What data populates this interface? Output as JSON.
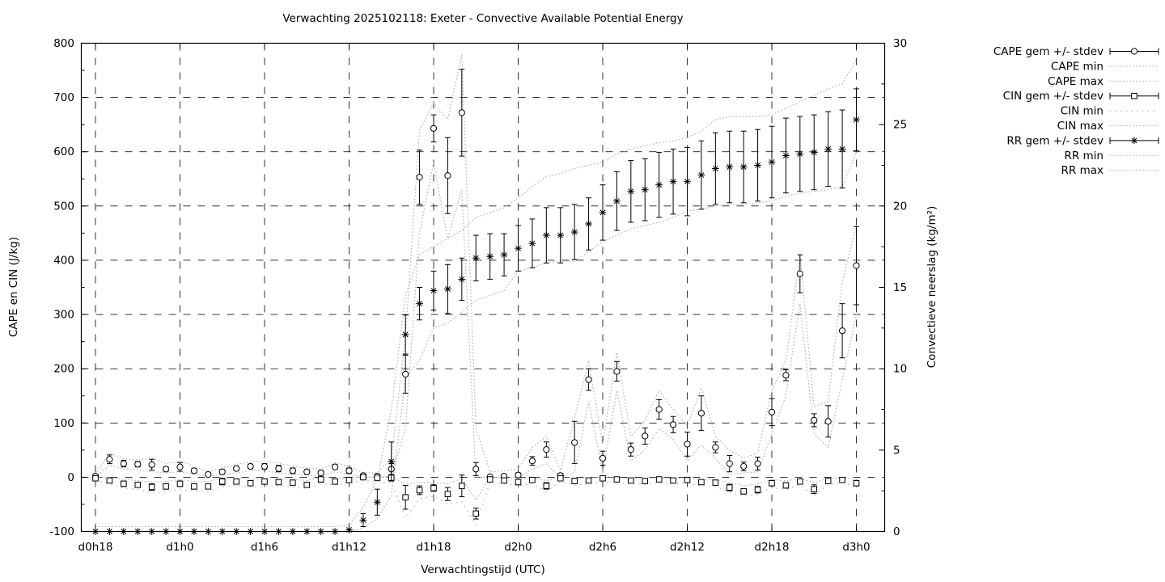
{
  "chart_data": {
    "type": "line",
    "title": "Verwachting 2025102118: Exeter - Convective Available Potential Energy",
    "xlabel": "Verwachtingstijd (UTC)",
    "ylabel_left": "CAPE en CIN (J/kg)",
    "ylabel_right": "Convectieve neerslag (kg/m²)",
    "grid": true,
    "legend_position": "outside-right-top",
    "ylim_left": [
      -100,
      800
    ],
    "yticks_left": [
      -100,
      0,
      100,
      200,
      300,
      400,
      500,
      600,
      700,
      800
    ],
    "ylim_right": [
      0,
      30
    ],
    "yticks_right": [
      0,
      5,
      10,
      15,
      20,
      25,
      30
    ],
    "n_points": 55,
    "x_tick_labels": [
      "d0h18",
      "d1h0",
      "d1h6",
      "d1h12",
      "d1h18",
      "d2h0",
      "d2h6",
      "d2h12",
      "d2h18",
      "d3h0"
    ],
    "x_tick_indices": [
      0,
      6,
      12,
      18,
      24,
      30,
      36,
      42,
      48,
      54
    ],
    "legend": [
      {
        "label": "CAPE gem +/- stdev",
        "style": "errorbar-circle"
      },
      {
        "label": "CAPE min",
        "style": "dotted"
      },
      {
        "label": "CAPE max",
        "style": "dotted"
      },
      {
        "label": "CIN gem +/- stdev",
        "style": "errorbar-square"
      },
      {
        "label": "CIN min",
        "style": "sparse-dotted"
      },
      {
        "label": "CIN max",
        "style": "dotted"
      },
      {
        "label": "RR gem +/- stdev",
        "style": "errorbar-asterisk"
      },
      {
        "label": "RR min",
        "style": "dotted"
      },
      {
        "label": "RR max",
        "style": "dotted"
      }
    ],
    "series": {
      "cape_gem": [
        2,
        33,
        25,
        24,
        23,
        15,
        19,
        12,
        5,
        10,
        16,
        20,
        20,
        16,
        12,
        10,
        8,
        19,
        12,
        3,
        2,
        15,
        190,
        553,
        643,
        556,
        672,
        15,
        1,
        2,
        4,
        30,
        51,
        3,
        64,
        180,
        35,
        195,
        51,
        76,
        125,
        97,
        61,
        118,
        55,
        25,
        20,
        25,
        120,
        188,
        375,
        105,
        103,
        270,
        390
      ],
      "cape_stdev": [
        3,
        8,
        6,
        5,
        10,
        4,
        8,
        4,
        3,
        4,
        4,
        4,
        5,
        6,
        5,
        4,
        4,
        4,
        5,
        3,
        3,
        10,
        35,
        50,
        25,
        70,
        80,
        12,
        2,
        3,
        4,
        8,
        14,
        4,
        39,
        20,
        13,
        18,
        12,
        15,
        18,
        15,
        22,
        32,
        10,
        15,
        8,
        12,
        25,
        10,
        35,
        12,
        29,
        50,
        72
      ],
      "cape_min": [
        0,
        22,
        15,
        14,
        10,
        8,
        10,
        5,
        2,
        4,
        8,
        12,
        12,
        8,
        5,
        4,
        2,
        10,
        5,
        0,
        0,
        2,
        90,
        450,
        580,
        440,
        530,
        0,
        0,
        0,
        0,
        15,
        25,
        0,
        10,
        140,
        10,
        160,
        30,
        50,
        90,
        70,
        30,
        60,
        35,
        5,
        8,
        10,
        80,
        150,
        320,
        80,
        55,
        180,
        300
      ],
      "cape_max": [
        6,
        45,
        34,
        32,
        36,
        25,
        30,
        20,
        10,
        17,
        24,
        28,
        30,
        26,
        20,
        17,
        15,
        27,
        20,
        8,
        8,
        35,
        260,
        640,
        690,
        660,
        780,
        90,
        10,
        12,
        15,
        55,
        75,
        12,
        110,
        215,
        60,
        230,
        75,
        105,
        160,
        125,
        95,
        165,
        75,
        50,
        35,
        45,
        160,
        215,
        410,
        130,
        140,
        360,
        465
      ],
      "cin_gem": [
        -2,
        -6,
        -12,
        -14,
        -18,
        -17,
        -12,
        -17,
        -17,
        -8,
        -8,
        -11,
        -8,
        -9,
        -10,
        -14,
        -4,
        -8,
        -5,
        0,
        -1,
        -1,
        -37,
        -24,
        -20,
        -31,
        -16,
        -67,
        -4,
        -6,
        -9,
        -5,
        -16,
        -2,
        -7,
        -6,
        -2,
        -4,
        -6,
        -7,
        -4,
        -6,
        -5,
        -9,
        -10,
        -19,
        -26,
        -23,
        -11,
        -15,
        -8,
        -22,
        -7,
        -5,
        -11
      ],
      "cin_stdev": [
        3,
        4,
        5,
        4,
        6,
        5,
        5,
        5,
        4,
        6,
        4,
        4,
        5,
        4,
        4,
        4,
        5,
        3,
        4,
        3,
        3,
        4,
        22,
        8,
        6,
        12,
        20,
        10,
        3,
        4,
        4,
        4,
        6,
        4,
        5,
        4,
        4,
        4,
        4,
        4,
        4,
        4,
        4,
        4,
        4,
        6,
        5,
        6,
        5,
        5,
        4,
        8,
        4,
        4,
        5
      ],
      "cin_min": [
        -6,
        -12,
        -20,
        -22,
        -28,
        -27,
        -22,
        -26,
        -25,
        -18,
        -15,
        -18,
        -16,
        -16,
        -17,
        -21,
        -12,
        -14,
        -11,
        -6,
        -8,
        -10,
        -75,
        -40,
        -35,
        -50,
        -45,
        -88,
        -10,
        -12,
        -16,
        -12,
        -26,
        -8,
        -15,
        -12,
        -8,
        -10,
        -12,
        -13,
        -10,
        -12,
        -11,
        -16,
        -17,
        -28,
        -34,
        -32,
        -19,
        -23,
        -14,
        -35,
        -13,
        -10,
        -18
      ],
      "cin_max": [
        0,
        0,
        -4,
        -6,
        -9,
        -8,
        -4,
        -8,
        -8,
        -2,
        -2,
        -4,
        -2,
        -3,
        -4,
        -6,
        0,
        -2,
        0,
        0,
        0,
        0,
        -12,
        -10,
        -10,
        -12,
        -2,
        -42,
        0,
        -1,
        -3,
        -1,
        -6,
        0,
        -2,
        -1,
        0,
        -1,
        -2,
        -2,
        -1,
        -2,
        -1,
        -4,
        -4,
        -10,
        -16,
        -12,
        -4,
        -7,
        -2,
        -10,
        -2,
        -1,
        -4
      ],
      "rr_gem": [
        0,
        0,
        0,
        0,
        0,
        0,
        0,
        0,
        0,
        0,
        0,
        0,
        0,
        0,
        0,
        0,
        0,
        0,
        0.1,
        0.7,
        1.8,
        4.3,
        12.1,
        14.0,
        14.8,
        14.9,
        15.5,
        16.8,
        16.9,
        17.0,
        17.4,
        17.7,
        18.2,
        18.2,
        18.4,
        18.9,
        19.6,
        20.3,
        20.9,
        21.0,
        21.3,
        21.5,
        21.5,
        21.9,
        22.3,
        22.4,
        22.4,
        22.5,
        22.7,
        23.1,
        23.2,
        23.3,
        23.5,
        23.5,
        25.3
      ],
      "rr_stdev": [
        0,
        0,
        0,
        0,
        0,
        0,
        0,
        0,
        0,
        0,
        0,
        0,
        0,
        0,
        0,
        0,
        0,
        0,
        0,
        0.4,
        0.8,
        1.2,
        1.2,
        1.0,
        1.2,
        1.5,
        1.3,
        1.4,
        1.4,
        1.3,
        1.4,
        1.5,
        1.7,
        1.7,
        1.7,
        1.6,
        1.7,
        1.8,
        1.9,
        1.9,
        2.0,
        2.0,
        2.1,
        2.1,
        2.2,
        2.2,
        2.2,
        2.2,
        2.2,
        2.3,
        2.3,
        2.3,
        2.3,
        2.4,
        1.9
      ],
      "rr_min": [
        0,
        0,
        0,
        0,
        0,
        0,
        0,
        0,
        0,
        0,
        0,
        0,
        0,
        0,
        0,
        0,
        0,
        0,
        0,
        0.2,
        0.8,
        2.2,
        9.5,
        10.5,
        12.5,
        12.8,
        13.5,
        14.2,
        14.5,
        14.8,
        16.0,
        16.2,
        16.5,
        16.6,
        16.6,
        17.2,
        17.8,
        18.2,
        18.6,
        18.8,
        19.0,
        19.3,
        19.7,
        19.8,
        20.0,
        20.1,
        20.1,
        20.2,
        20.3,
        20.6,
        20.8,
        20.9,
        21.0,
        21.2,
        23.3
      ],
      "rr_max": [
        0.3,
        0.3,
        0.3,
        0.3,
        0.3,
        0.3,
        0.3,
        0.3,
        0.3,
        0.3,
        0.3,
        0.3,
        0.3,
        0.3,
        0.3,
        0.3,
        0.3,
        0.3,
        0.4,
        1.5,
        3.2,
        7.5,
        14.5,
        17.0,
        17.5,
        18.0,
        18.5,
        19.3,
        19.6,
        19.9,
        20.5,
        21.2,
        21.8,
        22.0,
        22.3,
        22.5,
        22.7,
        23.2,
        23.5,
        23.7,
        23.9,
        24.0,
        24.2,
        24.6,
        25.3,
        25.5,
        25.5,
        25.5,
        25.6,
        26.0,
        26.4,
        26.8,
        27.2,
        27.5,
        29.0
      ]
    },
    "colors": {
      "foreground": "#000000",
      "envelope": "#b5b5b5",
      "background": "#ffffff"
    }
  }
}
